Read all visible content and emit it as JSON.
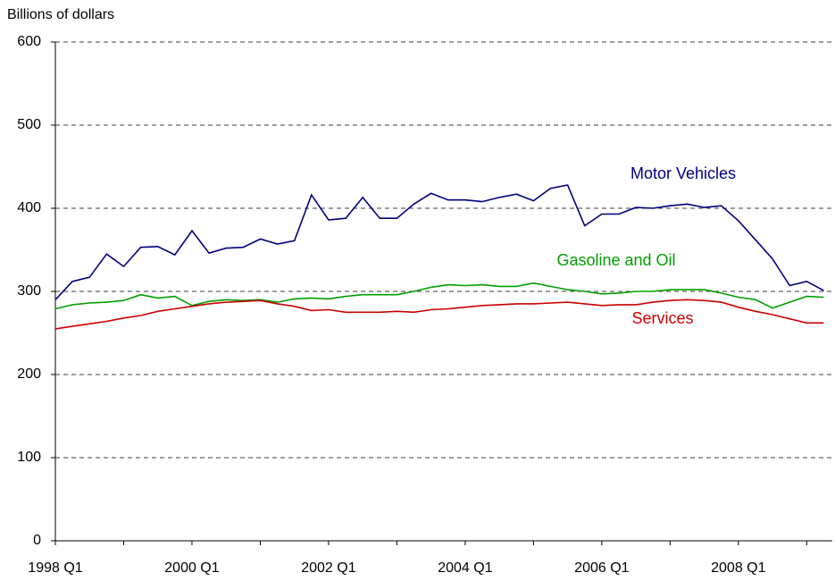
{
  "chart_data": {
    "type": "line",
    "y_axis_label": "Billions of dollars",
    "categories": [
      "1998 Q1",
      null,
      null,
      null,
      null,
      null,
      null,
      null,
      "2000 Q1",
      null,
      null,
      null,
      null,
      null,
      null,
      null,
      "2002 Q1",
      null,
      null,
      null,
      null,
      null,
      null,
      null,
      "2004 Q1",
      null,
      null,
      null,
      null,
      null,
      null,
      null,
      "2006 Q1",
      null,
      null,
      null,
      null,
      null,
      null,
      null,
      "2008 Q1",
      null,
      null,
      null,
      null,
      null
    ],
    "series": [
      {
        "name": "Motor Vehicles",
        "color": "#000080",
        "values": [
          290,
          312,
          317,
          345,
          330,
          353,
          354,
          344,
          373,
          346,
          352,
          353,
          363,
          357,
          361,
          416,
          386,
          388,
          413,
          388,
          388,
          405,
          418,
          410,
          410,
          408,
          413,
          417,
          409,
          424,
          428,
          379,
          393,
          393,
          401,
          400,
          403,
          405,
          401,
          403,
          385,
          362,
          339,
          307,
          312,
          301
        ]
      },
      {
        "name": "Gasoline and Oil",
        "color": "#00a000",
        "values": [
          279,
          284,
          286,
          287,
          289,
          296,
          292,
          294,
          283,
          288,
          290,
          289,
          290,
          287,
          291,
          292,
          291,
          294,
          296,
          296,
          296,
          300,
          305,
          308,
          307,
          308,
          306,
          306,
          310,
          306,
          302,
          300,
          297,
          298,
          300,
          300,
          302,
          302,
          302,
          298,
          293,
          290,
          280,
          287,
          294,
          293
        ]
      },
      {
        "name": "Services",
        "color": "#cc0000",
        "values": [
          255,
          258,
          261,
          264,
          268,
          271,
          276,
          279,
          282,
          285,
          287,
          288,
          289,
          285,
          282,
          277,
          278,
          275,
          275,
          275,
          276,
          275,
          278,
          279,
          281,
          283,
          284,
          285,
          285,
          286,
          287,
          285,
          283,
          284,
          284,
          287,
          289,
          290,
          289,
          287,
          281,
          276,
          272,
          267,
          262,
          262
        ]
      }
    ],
    "ylim": [
      0,
      600
    ],
    "yticks": [
      0,
      100,
      200,
      300,
      400,
      500,
      600
    ],
    "grid": true
  }
}
